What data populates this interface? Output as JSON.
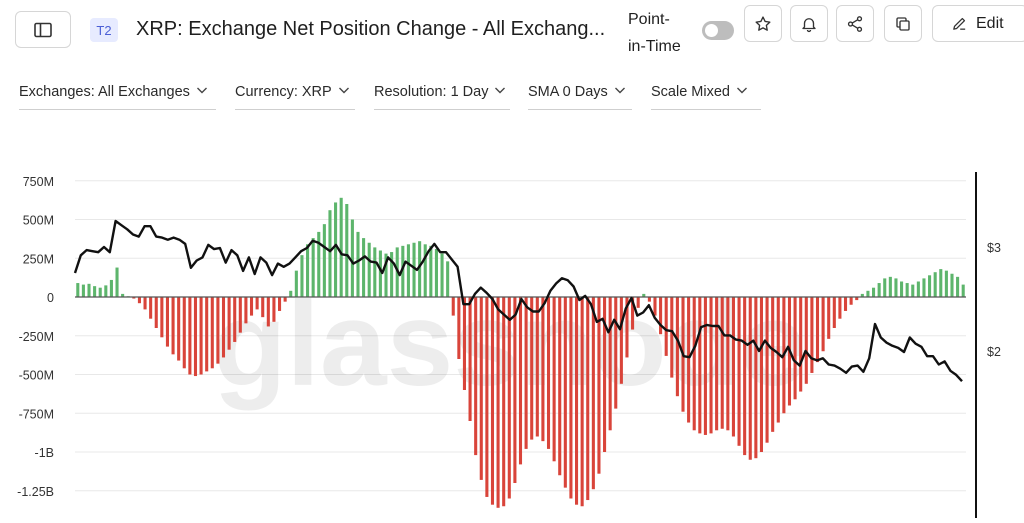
{
  "header": {
    "badge": "T2",
    "title": "XRP: Exchange Net Position Change - All Exchang...",
    "point_in_time_line1": "Point-",
    "point_in_time_line2": "in-Time",
    "point_in_time_on": false,
    "edit_label": "Edit"
  },
  "filters": [
    {
      "label": "Exchanges: All Exchanges"
    },
    {
      "label": "Currency: XRP"
    },
    {
      "label": "Resolution: 1 Day"
    },
    {
      "label": "SMA 0 Days"
    },
    {
      "label": "Scale Mixed"
    }
  ],
  "watermark": "glassnode",
  "colors": {
    "positive": "#5db56c",
    "negative": "#d9443a",
    "price": "#111111",
    "grid": "#e8e8e8"
  },
  "chart_data": {
    "type": "bar",
    "ylim": [
      -1350,
      800
    ],
    "yticks": [
      750,
      500,
      250,
      0,
      -250,
      -500,
      -750,
      -1000,
      -1250
    ],
    "ytick_labels": [
      "750M",
      "500M",
      "250M",
      "0",
      "-250M",
      "-500M",
      "-750M",
      "-1B",
      "-1.25B"
    ],
    "y2ticks": [
      3,
      2
    ],
    "y2tick_labels": [
      "$3",
      "$2"
    ],
    "series": [
      {
        "values": [
          90,
          80,
          85,
          70,
          60,
          75,
          110,
          190,
          20,
          5,
          -10,
          -40,
          -80,
          -140,
          -200,
          -260,
          -320,
          -370,
          -410,
          -460,
          -500,
          -510,
          -500,
          -480,
          -460,
          -430,
          -390,
          -340,
          -290,
          -230,
          -170,
          -120,
          -80,
          -130,
          -190,
          -160,
          -90,
          -30,
          40,
          170,
          270,
          340,
          380,
          420,
          470,
          560,
          610,
          640,
          600,
          500,
          420,
          380,
          350,
          320,
          300,
          280,
          290,
          320,
          330,
          340,
          350,
          360,
          340,
          330,
          310,
          280,
          230,
          -120,
          -400,
          -600,
          -800,
          -1020,
          -1180,
          -1290,
          -1340,
          -1360,
          -1350,
          -1300,
          -1200,
          -1080,
          -980,
          -920,
          -900,
          -930,
          -980,
          -1060,
          -1150,
          -1230,
          -1300,
          -1340,
          -1350,
          -1310,
          -1240,
          -1140,
          -1000,
          -860,
          -720,
          -560,
          -390,
          -210,
          -70,
          20,
          -30,
          -120,
          -240,
          -380,
          -520,
          -640,
          -740,
          -810,
          -860,
          -880,
          -890,
          -880,
          -860,
          -850,
          -860,
          -900,
          -960,
          -1020,
          -1050,
          -1040,
          -1000,
          -940,
          -870,
          -810,
          -750,
          -700,
          -660,
          -610,
          -560,
          -490,
          -420,
          -350,
          -270,
          -200,
          -140,
          -90,
          -50,
          -20,
          20,
          40,
          60,
          90,
          120,
          130,
          120,
          100,
          90,
          80,
          100,
          120,
          140,
          160,
          180,
          170,
          150,
          130,
          80
        ]
      },
      {
        "values": [
          2.75,
          2.92,
          2.97,
          2.96,
          2.95,
          3.0,
          2.95,
          3.25,
          3.21,
          3.17,
          3.12,
          3.1,
          3.2,
          3.2,
          3.1,
          3.09,
          3.07,
          3.09,
          3.07,
          3.03,
          2.8,
          2.87,
          2.9,
          3.02,
          2.98,
          2.99,
          2.85,
          2.97,
          2.92,
          2.77,
          2.9,
          2.74,
          2.9,
          2.85,
          2.73,
          2.84,
          2.81,
          2.84,
          2.9,
          2.96,
          2.99,
          3.06,
          3.04,
          3.0,
          2.96,
          3.02,
          2.93,
          2.92,
          2.84,
          2.87,
          2.91,
          2.86,
          2.85,
          2.75,
          2.9,
          2.84,
          2.73,
          2.86,
          2.82,
          2.78,
          2.86,
          2.96,
          3.03,
          2.95,
          2.95,
          2.88,
          2.81,
          2.45,
          2.45,
          2.55,
          2.61,
          2.56,
          2.5,
          2.4,
          2.35,
          2.3,
          2.35,
          2.5,
          2.42,
          2.38,
          2.38,
          2.46,
          2.58,
          2.65,
          2.7,
          2.68,
          2.62,
          2.49,
          2.53,
          2.45,
          2.28,
          2.31,
          2.18,
          2.3,
          2.21,
          2.41,
          2.51,
          2.34,
          2.37,
          2.44,
          2.32,
          2.25,
          2.2,
          2.19,
          2.1,
          1.95,
          1.94,
          2.05,
          2.23,
          2.25,
          2.24,
          2.24,
          2.15,
          2.15,
          2.11,
          2.1,
          2.06,
          2.1,
          2.0,
          2.1,
          2.03,
          1.99,
          1.94,
          2.04,
          1.91,
          1.86,
          2.0,
          1.93,
          1.91,
          1.93,
          1.87,
          1.86,
          1.83,
          1.79,
          1.85,
          1.86,
          1.8,
          1.93,
          2.26,
          2.13,
          2.08,
          2.05,
          2.03,
          1.99,
          2.13,
          2.07,
          2.04,
          1.95,
          1.95,
          1.87,
          1.9,
          1.81,
          1.77,
          1.71
        ]
      }
    ]
  }
}
